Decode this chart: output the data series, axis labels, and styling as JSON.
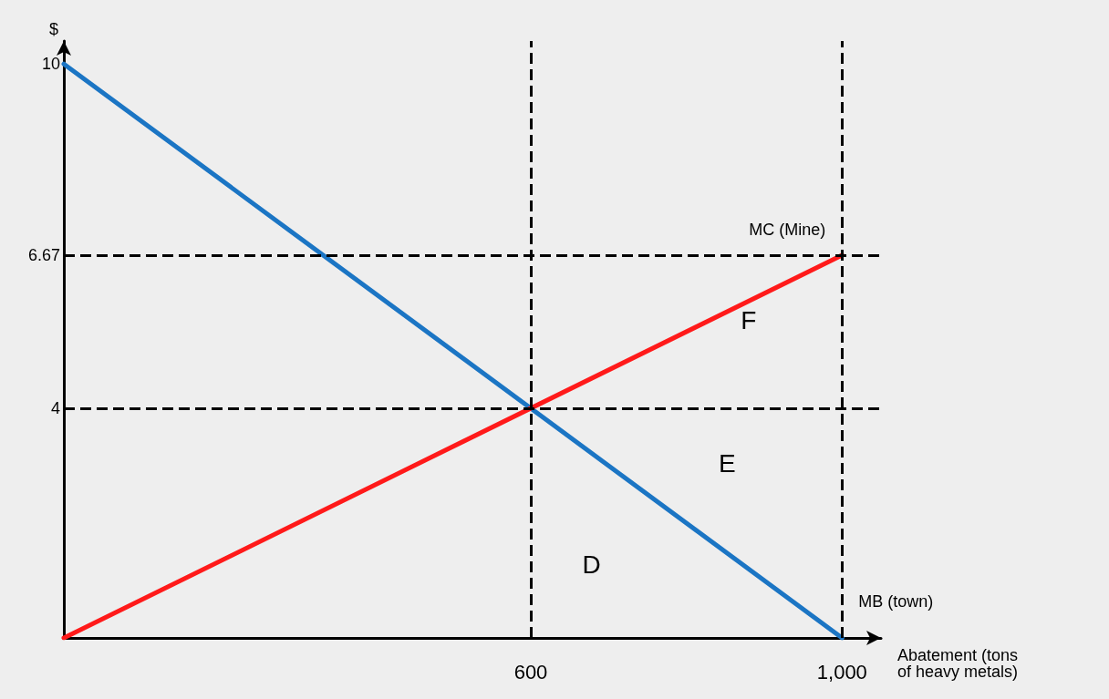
{
  "chart_data": {
    "type": "line",
    "xlabel": "Abatement (tons\nof heavy metals)",
    "ylabel": "$",
    "xlim": [
      0,
      1050
    ],
    "ylim": [
      0,
      10.4
    ],
    "xticks": [
      600,
      {
        "value": 1000,
        "label": "1,000"
      }
    ],
    "yticks": [
      4,
      6.67,
      10
    ],
    "x": [
      0,
      1000
    ],
    "series": [
      {
        "name": "MB (town)",
        "color": "#1b75c4",
        "values": [
          10,
          0
        ]
      },
      {
        "name": "MC (Mine)",
        "color": "#ff1a1a",
        "values": [
          0,
          6.67
        ]
      }
    ],
    "ref_lines": [
      {
        "axis": "y",
        "value": 4,
        "color": "#000000",
        "line_style": "dashed"
      },
      {
        "axis": "y",
        "value": 6.67,
        "color": "#000000",
        "line_style": "dashed"
      },
      {
        "axis": "x",
        "value": 600,
        "color": "#000000",
        "line_style": "dashed"
      },
      {
        "axis": "x",
        "value": 1000,
        "color": "#000000",
        "line_style": "dashed"
      }
    ],
    "annotations": [
      "D",
      "E",
      "F"
    ],
    "grid": false,
    "legend": false,
    "marker": "none",
    "line_style": "solid"
  }
}
